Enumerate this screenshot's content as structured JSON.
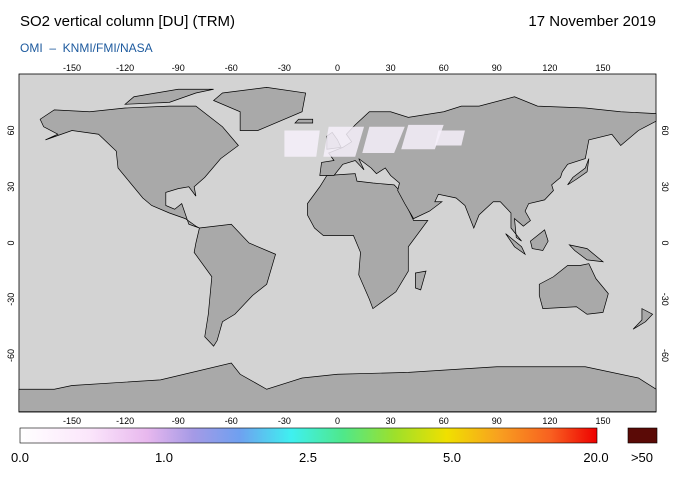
{
  "header": {
    "title": "SO2 vertical column [DU] (TRM)",
    "date": "17 November 2019",
    "source": "OMI  –  KNMI/FMI/NASA"
  },
  "map": {
    "lon_ticks": [
      -150,
      -120,
      -90,
      -60,
      -30,
      0,
      30,
      60,
      90,
      120,
      150
    ],
    "lat_ticks": [
      -60,
      -30,
      0,
      30,
      60
    ]
  },
  "legend": {
    "labels": [
      "0.0",
      "1.0",
      "2.5",
      "5.0",
      "20.0",
      ">50"
    ]
  }
}
